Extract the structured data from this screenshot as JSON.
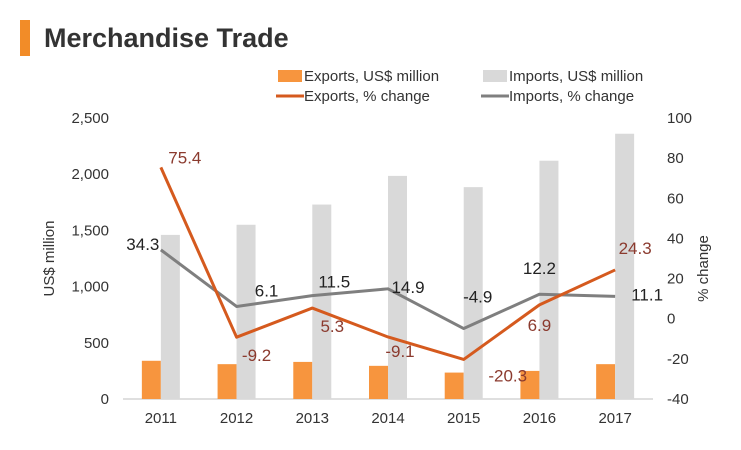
{
  "page": {
    "title": "Merchandise Trade",
    "accent_color": "#F28C28"
  },
  "chart_data": {
    "type": "bar",
    "categories": [
      "2011",
      "2012",
      "2013",
      "2014",
      "2015",
      "2016",
      "2017"
    ],
    "ylabel_left": "US$ million",
    "ylabel_right": "% change",
    "ylim_left": [
      0,
      2500
    ],
    "yticks_left": [
      "0",
      "500",
      "1,000",
      "1,500",
      "2,000",
      "2,500"
    ],
    "ylim_right": [
      -40,
      100
    ],
    "yticks_right": [
      "-40",
      "-20",
      "0",
      "20",
      "40",
      "60",
      "80",
      "100"
    ],
    "grid": false,
    "legend_position": "top",
    "series": [
      {
        "name": "Exports, US$ million",
        "kind": "bar",
        "axis": "left",
        "color": "#F7953E",
        "values": [
          340,
          310,
          330,
          295,
          235,
          250,
          310
        ]
      },
      {
        "name": "Imports, US$ million",
        "kind": "bar",
        "axis": "left",
        "color": "#D9D9D9",
        "values": [
          1460,
          1550,
          1730,
          1985,
          1885,
          2120,
          2360
        ]
      },
      {
        "name": "Exports, % change",
        "kind": "line",
        "axis": "right",
        "color": "#D55A1E",
        "label_color": "#8B3A2E",
        "values": [
          75.4,
          -9.2,
          5.3,
          -9.1,
          -20.3,
          6.9,
          24.3
        ],
        "labels": [
          "75.4",
          "-9.2",
          "5.3",
          "-9.1",
          "-20.3",
          "6.9",
          "24.3"
        ]
      },
      {
        "name": "Imports, % change",
        "kind": "line",
        "axis": "right",
        "color": "#7F7F7F",
        "label_color": "#222222",
        "values": [
          34.3,
          6.1,
          11.5,
          14.9,
          -4.9,
          12.2,
          11.1
        ],
        "labels": [
          "34.3",
          "6.1",
          "11.5",
          "14.9",
          "-4.9",
          "12.2",
          "11.1"
        ]
      }
    ]
  }
}
